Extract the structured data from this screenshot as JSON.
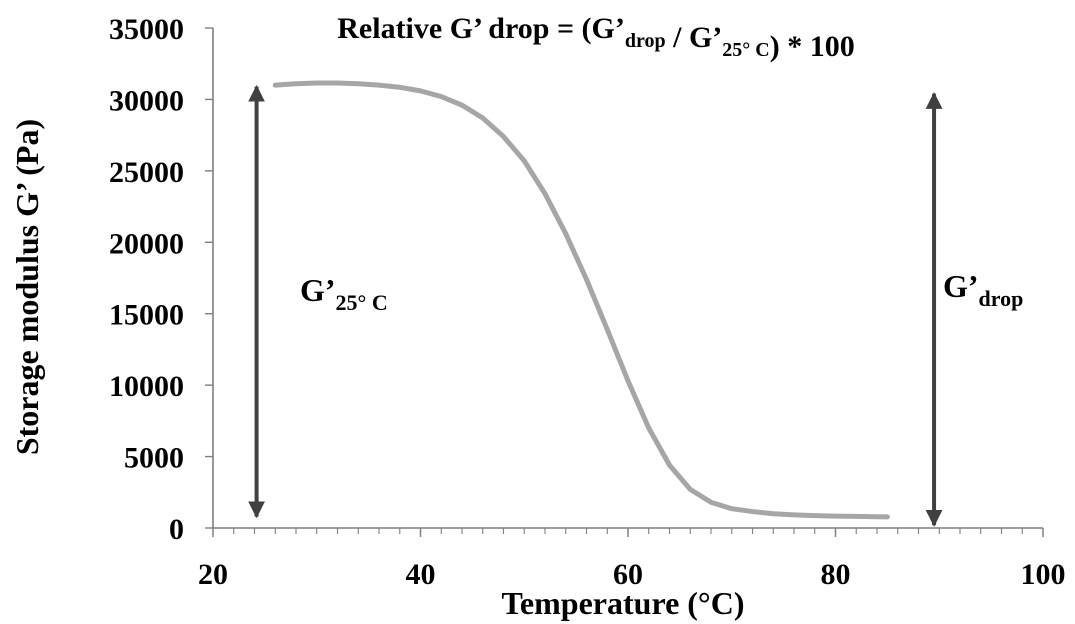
{
  "chart_data": {
    "type": "line",
    "title": {
      "parts": [
        {
          "text": "Relative G’ drop = (G’",
          "sub": false
        },
        {
          "text": "drop",
          "sub": true
        },
        {
          "text": " / G’",
          "sub": false
        },
        {
          "text": "25°  C",
          "sub": true
        },
        {
          "text": ") * 100",
          "sub": false
        }
      ]
    },
    "xlabel": "Temperature (°C)",
    "ylabel": "Storage modulus G’ (Pa)",
    "xlim": [
      20,
      100
    ],
    "ylim": [
      0,
      35000
    ],
    "xticks": [
      20,
      40,
      60,
      80,
      100
    ],
    "yticks": [
      0,
      5000,
      10000,
      15000,
      20000,
      25000,
      30000,
      35000
    ],
    "x_minor_step": 2,
    "grid": false,
    "series": [
      {
        "color": "#a6a6a6",
        "points": [
          [
            26,
            31000
          ],
          [
            28,
            31100
          ],
          [
            30,
            31150
          ],
          [
            32,
            31150
          ],
          [
            34,
            31100
          ],
          [
            36,
            31000
          ],
          [
            38,
            30850
          ],
          [
            40,
            30600
          ],
          [
            42,
            30200
          ],
          [
            44,
            29600
          ],
          [
            46,
            28700
          ],
          [
            48,
            27400
          ],
          [
            50,
            25700
          ],
          [
            52,
            23400
          ],
          [
            54,
            20600
          ],
          [
            56,
            17400
          ],
          [
            58,
            13900
          ],
          [
            60,
            10300
          ],
          [
            62,
            7000
          ],
          [
            64,
            4400
          ],
          [
            66,
            2700
          ],
          [
            68,
            1800
          ],
          [
            70,
            1350
          ],
          [
            72,
            1150
          ],
          [
            74,
            1000
          ],
          [
            76,
            920
          ],
          [
            78,
            870
          ],
          [
            80,
            830
          ],
          [
            82,
            810
          ],
          [
            84,
            790
          ],
          [
            85,
            780
          ]
        ]
      }
    ],
    "annotations": [
      {
        "type": "double-arrow",
        "x": 24.2,
        "y_range": [
          800,
          30900
        ],
        "color": "#404040",
        "label_parts": [
          {
            "text": "G’",
            "sub": false
          },
          {
            "text": "25°  C",
            "sub": true
          }
        ]
      },
      {
        "type": "double-arrow",
        "x": 89.5,
        "y_range": [
          200,
          30400
        ],
        "color": "#404040",
        "label_parts": [
          {
            "text": "G’",
            "sub": false
          },
          {
            "text": "drop",
            "sub": true
          }
        ]
      }
    ]
  }
}
